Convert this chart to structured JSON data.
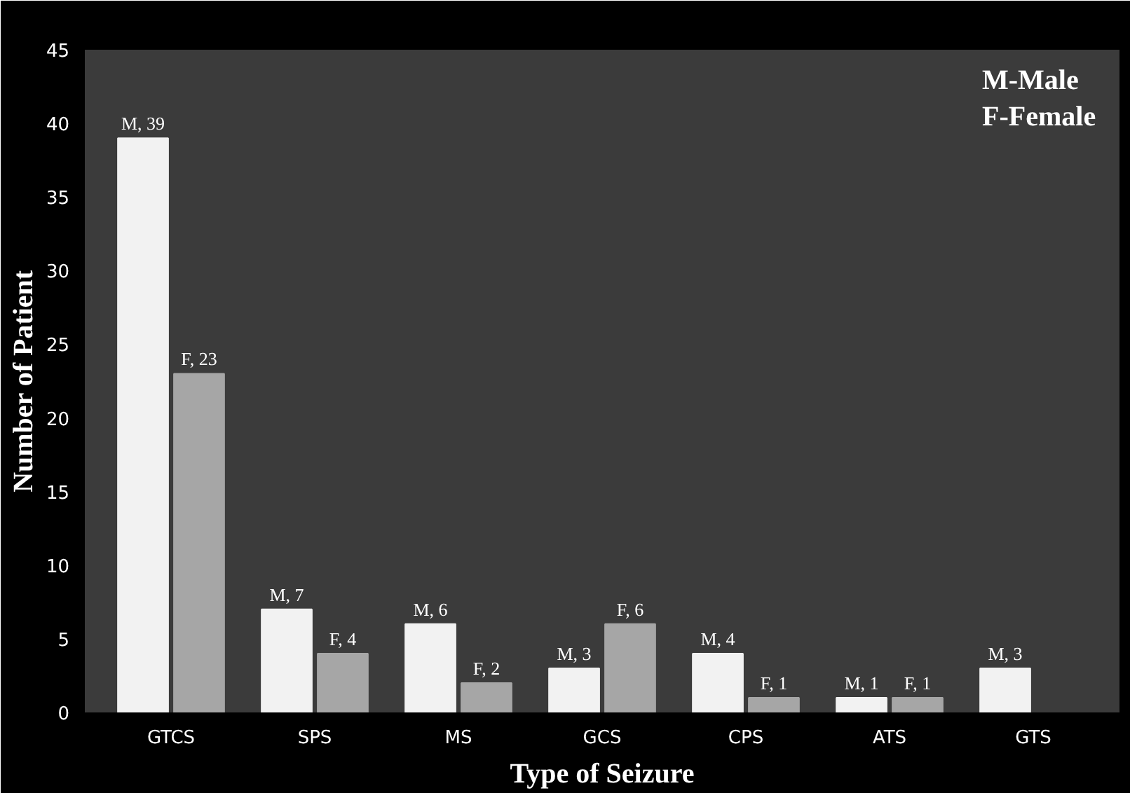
{
  "chart_data": {
    "type": "bar",
    "xlabel": "Type of Seizure",
    "ylabel": "Number of Patient",
    "categories": [
      "GTCS",
      "SPS",
      "MS",
      "GCS",
      "CPS",
      "ATS",
      "GTS"
    ],
    "series": [
      {
        "color": "#f2f2f2",
        "values": [
          39,
          7,
          6,
          3,
          4,
          1,
          3
        ],
        "value_labels": [
          "M, 39",
          "M, 7",
          "M, 6",
          "M, 3",
          "M, 4",
          "M, 1",
          "M, 3"
        ]
      },
      {
        "color": "#a6a6a6",
        "values": [
          23,
          4,
          2,
          6,
          1,
          1,
          null
        ],
        "value_labels": [
          "F, 23",
          "F, 4",
          "F, 2",
          "F, 6",
          "F, 1",
          "F, 1",
          null
        ]
      }
    ],
    "ylim": [
      0,
      45
    ],
    "yticks": [
      0,
      5,
      10,
      15,
      20,
      25,
      30,
      35,
      40,
      45
    ],
    "grid": false,
    "annotations": [
      "M-Male",
      "F-Female"
    ]
  }
}
